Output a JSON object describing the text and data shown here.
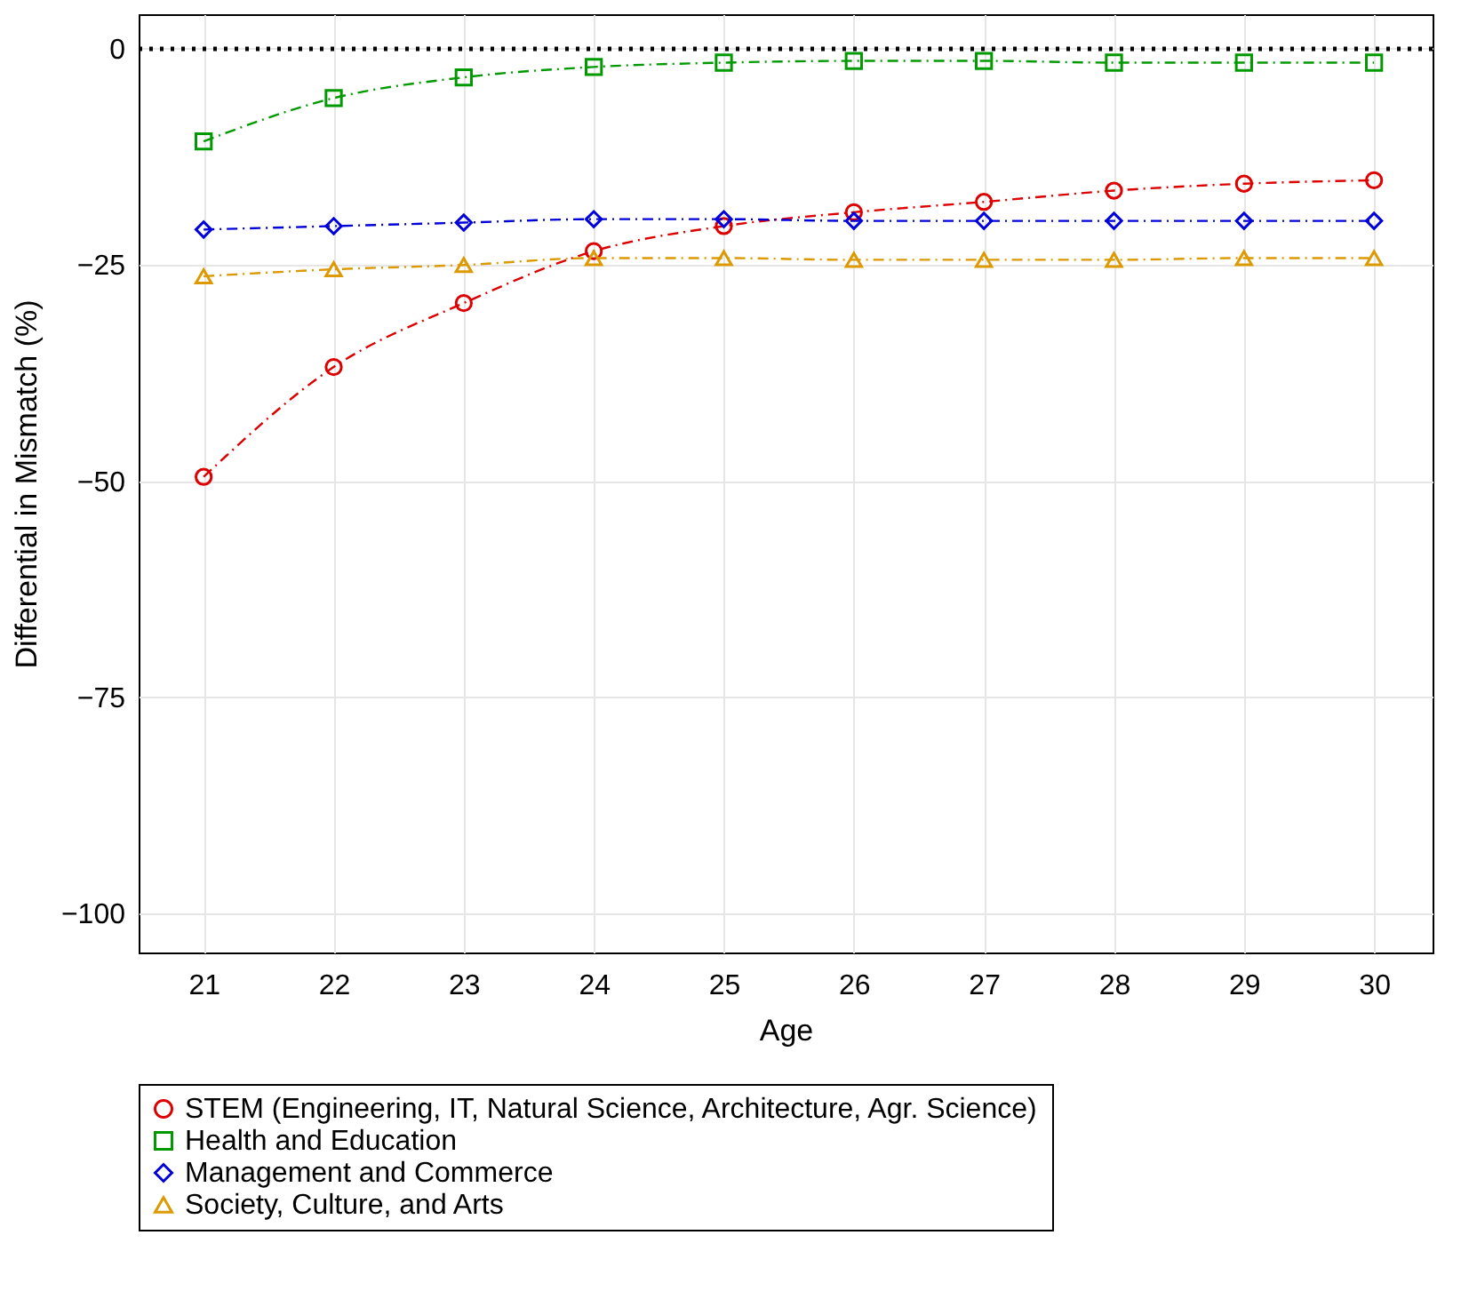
{
  "chart_data": {
    "type": "line",
    "xlabel": "Age",
    "ylabel": "Differential in Mismatch (%)",
    "x": [
      21,
      22,
      23,
      24,
      25,
      26,
      27,
      28,
      29,
      30
    ],
    "xlim": [
      20.5,
      30.45
    ],
    "xticks": [
      21,
      22,
      23,
      24,
      25,
      26,
      27,
      28,
      29,
      30
    ],
    "ylim": [
      -104.5,
      4
    ],
    "yticks": [
      {
        "value": -100,
        "label": "−100"
      },
      {
        "value": -75,
        "label": "−75"
      },
      {
        "value": -50,
        "label": "−50"
      },
      {
        "value": -25,
        "label": "−25"
      },
      0
    ],
    "grid": true,
    "legend": "bottom",
    "line_style": "dashed",
    "ref_lines": [
      {
        "axis": "y",
        "value": 0,
        "color": "#000000",
        "line_style": "dotted"
      }
    ],
    "series": [
      {
        "name": "STEM (Engineering, IT, Natural Science, Architecture, Agr. Science)",
        "color": "#dd0000",
        "marker": "circle",
        "values": [
          -49.5,
          -36.8,
          -29.4,
          -23.4,
          -20.5,
          -18.9,
          -17.7,
          -16.4,
          -15.6,
          -15.2
        ]
      },
      {
        "name": "Health and Education",
        "color": "#009900",
        "marker": "square",
        "values": [
          -10.7,
          -5.7,
          -3.3,
          -2.1,
          -1.6,
          -1.4,
          -1.4,
          -1.6,
          -1.6,
          -1.6
        ]
      },
      {
        "name": "Management and Commerce",
        "color": "#0000dd",
        "marker": "diamond",
        "values": [
          -20.9,
          -20.5,
          -20.1,
          -19.7,
          -19.7,
          -19.9,
          -19.9,
          -19.9,
          -19.9,
          -19.9
        ]
      },
      {
        "name": "Society, Culture, and Arts",
        "color": "#dd9900",
        "marker": "triangle",
        "values": [
          -26.3,
          -25.5,
          -25,
          -24.2,
          -24.2,
          -24.4,
          -24.4,
          -24.4,
          -24.2,
          -24.2
        ]
      }
    ]
  }
}
